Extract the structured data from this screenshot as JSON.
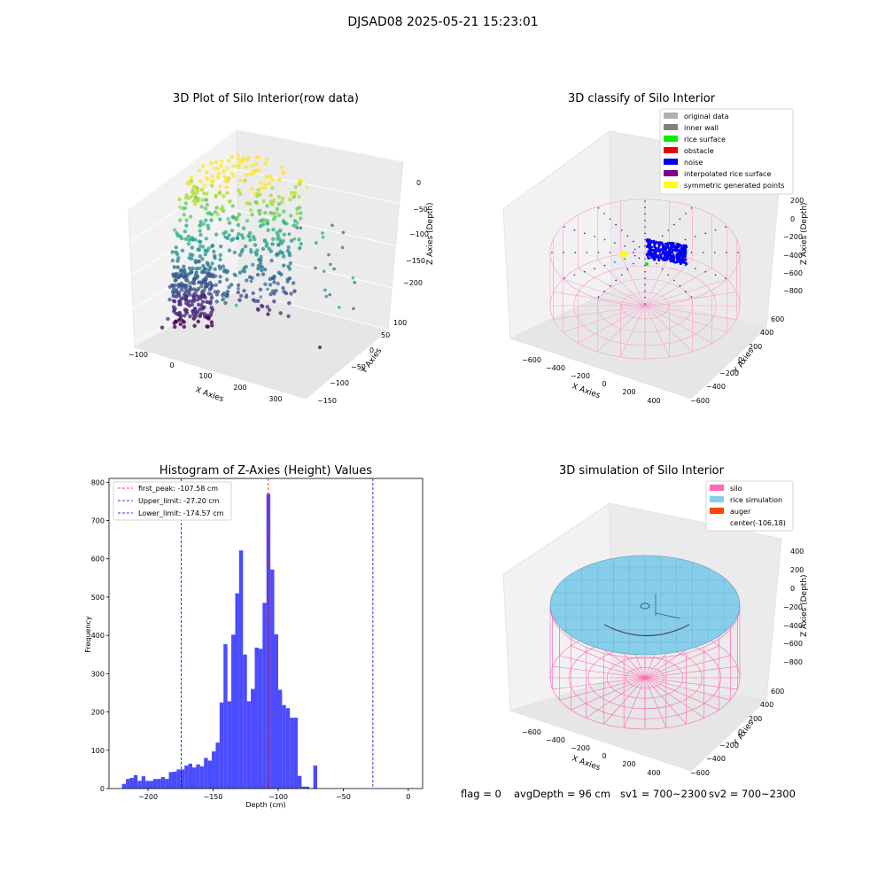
{
  "suptitle": "DJSAD08 2025-05-21 15:23:01",
  "chart_data": [
    {
      "type": "scatter",
      "projection": "3d",
      "title": "3D Plot of Silo Interior(row data)",
      "xlabel": "X Axies",
      "ylabel": "Y Axies",
      "zlabel": "Z Axies (Depth)",
      "xticks": [
        "−100",
        "0",
        "100",
        "200",
        "300"
      ],
      "yticks": [
        "100",
        "50",
        "0",
        "−50",
        "−100",
        "−150"
      ],
      "zticks": [
        "0",
        "−50",
        "−100",
        "−150",
        "−200"
      ],
      "colormap": "viridis",
      "approx_ranges": {
        "x": [
          -100,
          330
        ],
        "y": [
          -160,
          120
        ],
        "z": [
          -215,
          5
        ]
      }
    },
    {
      "type": "scatter",
      "projection": "3d",
      "title": "3D classify of Silo Interior",
      "xlabel": "X Axies",
      "ylabel": "Y Axies",
      "zlabel": "Z Axies (Depth)",
      "xticks": [
        "−600",
        "−400",
        "−200",
        "0",
        "200",
        "400"
      ],
      "yticks": [
        "600",
        "400",
        "200",
        "0",
        "−200",
        "−400",
        "−600"
      ],
      "zticks": [
        "200",
        "0",
        "−200",
        "−400",
        "−600",
        "−800"
      ],
      "legend_position": "top-right",
      "legend": [
        {
          "label": "original data",
          "color": "#b0b0b0"
        },
        {
          "label": "inner wall",
          "color": "#808080"
        },
        {
          "label": "rice surface",
          "color": "#00ee00"
        },
        {
          "label": "obstacle",
          "color": "#ee0000"
        },
        {
          "label": "noise",
          "color": "#0000ee"
        },
        {
          "label": "interpolated rice surface",
          "color": "#800080"
        },
        {
          "label": "symmetric generated points",
          "color": "#ffff00"
        }
      ]
    },
    {
      "type": "bar",
      "title": "Histogram of Z-Axies (Height) Values",
      "xlabel": "Depth (cm)",
      "ylabel": "Frequency",
      "xlim": [
        -230,
        11
      ],
      "ylim": [
        0,
        810
      ],
      "xticks": [
        -200,
        -150,
        -100,
        -50,
        0
      ],
      "xtick_labels": [
        "−200",
        "−150",
        "−100",
        "−50",
        "0"
      ],
      "yticks": [
        0,
        100,
        200,
        300,
        400,
        500,
        600,
        700,
        800
      ],
      "bar_color": "#4b4bff",
      "bins": [
        {
          "start": -220.0,
          "end": -217.0,
          "value": 12
        },
        {
          "start": -217.0,
          "end": -214.0,
          "value": 25
        },
        {
          "start": -214.0,
          "end": -211.0,
          "value": 28
        },
        {
          "start": -211.0,
          "end": -208.0,
          "value": 35
        },
        {
          "start": -208.0,
          "end": -205.0,
          "value": 20
        },
        {
          "start": -205.0,
          "end": -202.0,
          "value": 32
        },
        {
          "start": -202.0,
          "end": -199.0,
          "value": 20
        },
        {
          "start": -199.0,
          "end": -196.0,
          "value": 20
        },
        {
          "start": -196.0,
          "end": -193.0,
          "value": 25
        },
        {
          "start": -193.0,
          "end": -190.0,
          "value": 25
        },
        {
          "start": -190.0,
          "end": -187.0,
          "value": 30
        },
        {
          "start": -187.0,
          "end": -184.0,
          "value": 25
        },
        {
          "start": -184.0,
          "end": -181.0,
          "value": 43
        },
        {
          "start": -181.0,
          "end": -178.0,
          "value": 44
        },
        {
          "start": -178.0,
          "end": -175.0,
          "value": 50
        },
        {
          "start": -175.0,
          "end": -172.0,
          "value": 50
        },
        {
          "start": -172.0,
          "end": -169.0,
          "value": 60
        },
        {
          "start": -169.0,
          "end": -166.0,
          "value": 65
        },
        {
          "start": -166.0,
          "end": -163.0,
          "value": 55
        },
        {
          "start": -163.0,
          "end": -160.0,
          "value": 63
        },
        {
          "start": -160.0,
          "end": -157.0,
          "value": 58
        },
        {
          "start": -157.0,
          "end": -154.0,
          "value": 80
        },
        {
          "start": -154.0,
          "end": -151.0,
          "value": 73
        },
        {
          "start": -151.0,
          "end": -148.0,
          "value": 97
        },
        {
          "start": -148.0,
          "end": -145.0,
          "value": 120
        },
        {
          "start": -145.0,
          "end": -142.0,
          "value": 225
        },
        {
          "start": -142.0,
          "end": -139.0,
          "value": 377
        },
        {
          "start": -139.0,
          "end": -136.0,
          "value": 228
        },
        {
          "start": -136.0,
          "end": -133.0,
          "value": 402
        },
        {
          "start": -133.0,
          "end": -130.0,
          "value": 510
        },
        {
          "start": -130.0,
          "end": -127.0,
          "value": 622
        },
        {
          "start": -127.0,
          "end": -124.0,
          "value": 350
        },
        {
          "start": -124.0,
          "end": -121.0,
          "value": 228
        },
        {
          "start": -121.0,
          "end": -118.0,
          "value": 260
        },
        {
          "start": -118.0,
          "end": -115.0,
          "value": 368
        },
        {
          "start": -115.0,
          "end": -112.0,
          "value": 365
        },
        {
          "start": -112.0,
          "end": -109.0,
          "value": 485
        },
        {
          "start": -109.0,
          "end": -106.0,
          "value": 770
        },
        {
          "start": -106.0,
          "end": -103.0,
          "value": 572
        },
        {
          "start": -103.0,
          "end": -100.0,
          "value": 403
        },
        {
          "start": -100.0,
          "end": -97.0,
          "value": 258
        },
        {
          "start": -97.0,
          "end": -94.0,
          "value": 218
        },
        {
          "start": -94.0,
          "end": -91.0,
          "value": 210
        },
        {
          "start": -91.0,
          "end": -88.0,
          "value": 185
        },
        {
          "start": -88.0,
          "end": -85.0,
          "value": 185
        },
        {
          "start": -85.0,
          "end": -82.0,
          "value": 33
        },
        {
          "start": -82.0,
          "end": -79.0,
          "value": 5
        },
        {
          "start": -79.0,
          "end": -76.0,
          "value": 5
        },
        {
          "start": -76.0,
          "end": -73.0,
          "value": 0
        },
        {
          "start": -73.0,
          "end": -70.0,
          "value": 60
        }
      ],
      "vlines": [
        {
          "label": "first_peak: -107.58 cm",
          "x": -107.58,
          "color": "#ff0000"
        },
        {
          "label": "Upper_limit: -27.20 cm",
          "x": -27.2,
          "color": "#0000cc"
        },
        {
          "label": "Lower_limit: -174.57 cm",
          "x": -174.57,
          "color": "#0000cc"
        }
      ],
      "legend_position": "top-left"
    },
    {
      "type": "surface",
      "projection": "3d",
      "title": "3D simulation of Silo Interior",
      "xlabel": "X Axies",
      "ylabel": "Y Axies",
      "zlabel": "Z Axies (Depth)",
      "xticks": [
        "−600",
        "−400",
        "−200",
        "0",
        "200",
        "400"
      ],
      "yticks": [
        "600",
        "400",
        "200",
        "0",
        "−200",
        "−400",
        "−600"
      ],
      "zticks": [
        "400",
        "200",
        "0",
        "−200",
        "−400",
        "−600",
        "−800"
      ],
      "legend_position": "top-right",
      "legend": [
        {
          "label": "silo",
          "color": "#ff69b4"
        },
        {
          "label": "rice simulation",
          "color": "#87ceeb"
        },
        {
          "label": "auger",
          "color": "#ff4500"
        },
        {
          "label": "center(-106,18)",
          "color": ""
        }
      ]
    }
  ],
  "footer": {
    "flag": "flag = 0",
    "avg_depth": "avgDepth = 96 cm",
    "sv1": "sv1 = 700~2300",
    "sv2": "sv2 = 700~2300"
  }
}
